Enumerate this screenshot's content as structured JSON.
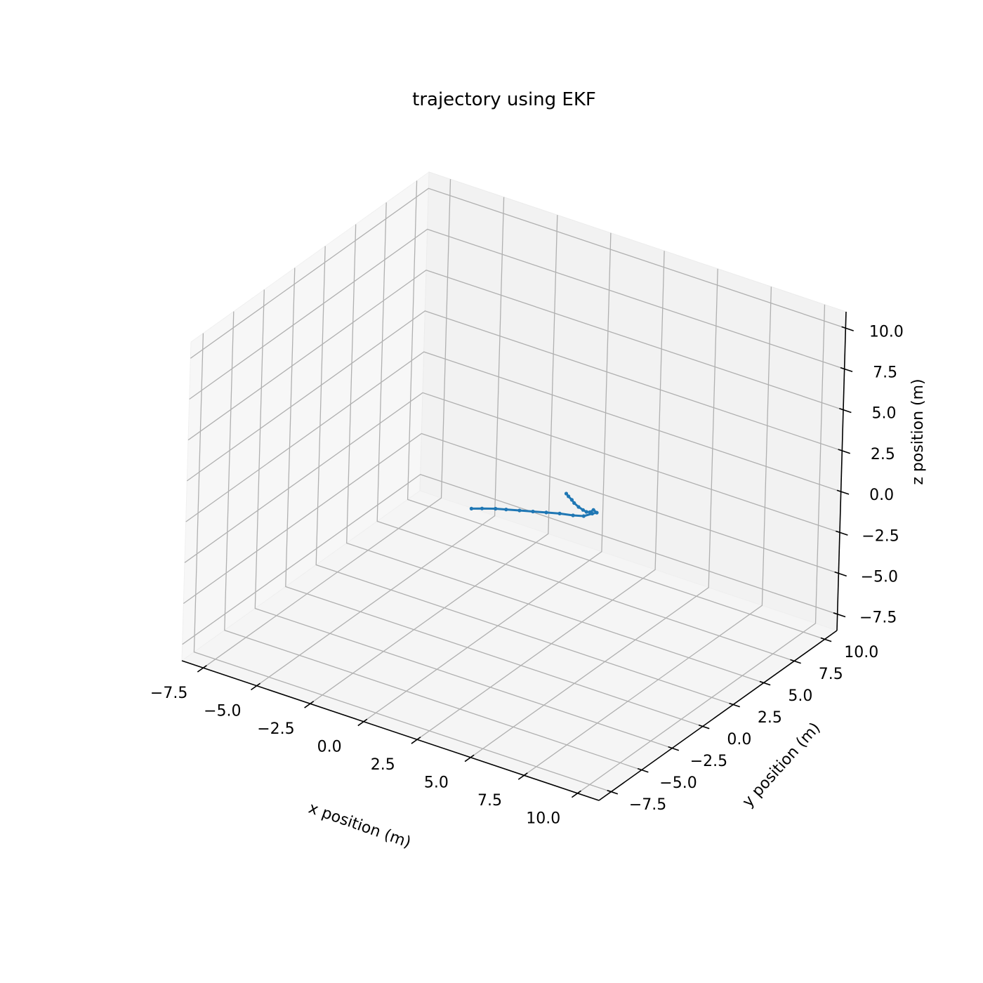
{
  "chart_data": {
    "type": "line",
    "title": "trajectory using EKF",
    "xlabel": "x position (m)",
    "ylabel": "y position (m)",
    "zlabel": "z position (m)",
    "xlim": [
      -8.5,
      11.0
    ],
    "ylim": [
      -8.5,
      11.0
    ],
    "zlim": [
      -8.5,
      11.0
    ],
    "xticks": [
      "−7.5",
      "−5.0",
      "−2.5",
      "0.0",
      "2.5",
      "5.0",
      "7.5",
      "10.0"
    ],
    "yticks": [
      "−7.5",
      "−5.0",
      "−2.5",
      "0.0",
      "2.5",
      "5.0",
      "7.5",
      "10.0"
    ],
    "zticks": [
      "−7.5",
      "−5.0",
      "−2.5",
      "0.0",
      "2.5",
      "5.0",
      "7.5",
      "10.0"
    ],
    "grid": true,
    "series": [
      {
        "color": "#1f77b4",
        "x": [
          0.0,
          0.3,
          0.7,
          1.0,
          1.4,
          1.8,
          2.2,
          2.6,
          3.0,
          3.3,
          3.5,
          3.6,
          3.55,
          3.5,
          3.45,
          3.4,
          3.3,
          3.2,
          3.2,
          3.15,
          3.1
        ],
        "y": [
          0.0,
          0.35,
          0.75,
          1.1,
          1.5,
          1.9,
          2.3,
          2.7,
          3.1,
          3.45,
          3.8,
          4.0,
          3.8,
          3.6,
          3.4,
          3.2,
          3.0,
          2.8,
          2.6,
          2.4,
          2.3
        ],
        "z": [
          0.0,
          -0.05,
          -0.1,
          -0.2,
          -0.3,
          -0.4,
          -0.5,
          -0.6,
          -0.75,
          -0.85,
          -0.8,
          -0.8,
          -0.55,
          -0.6,
          -0.5,
          -0.3,
          -0.05,
          0.25,
          0.55,
          0.85,
          1.05
        ]
      }
    ]
  }
}
